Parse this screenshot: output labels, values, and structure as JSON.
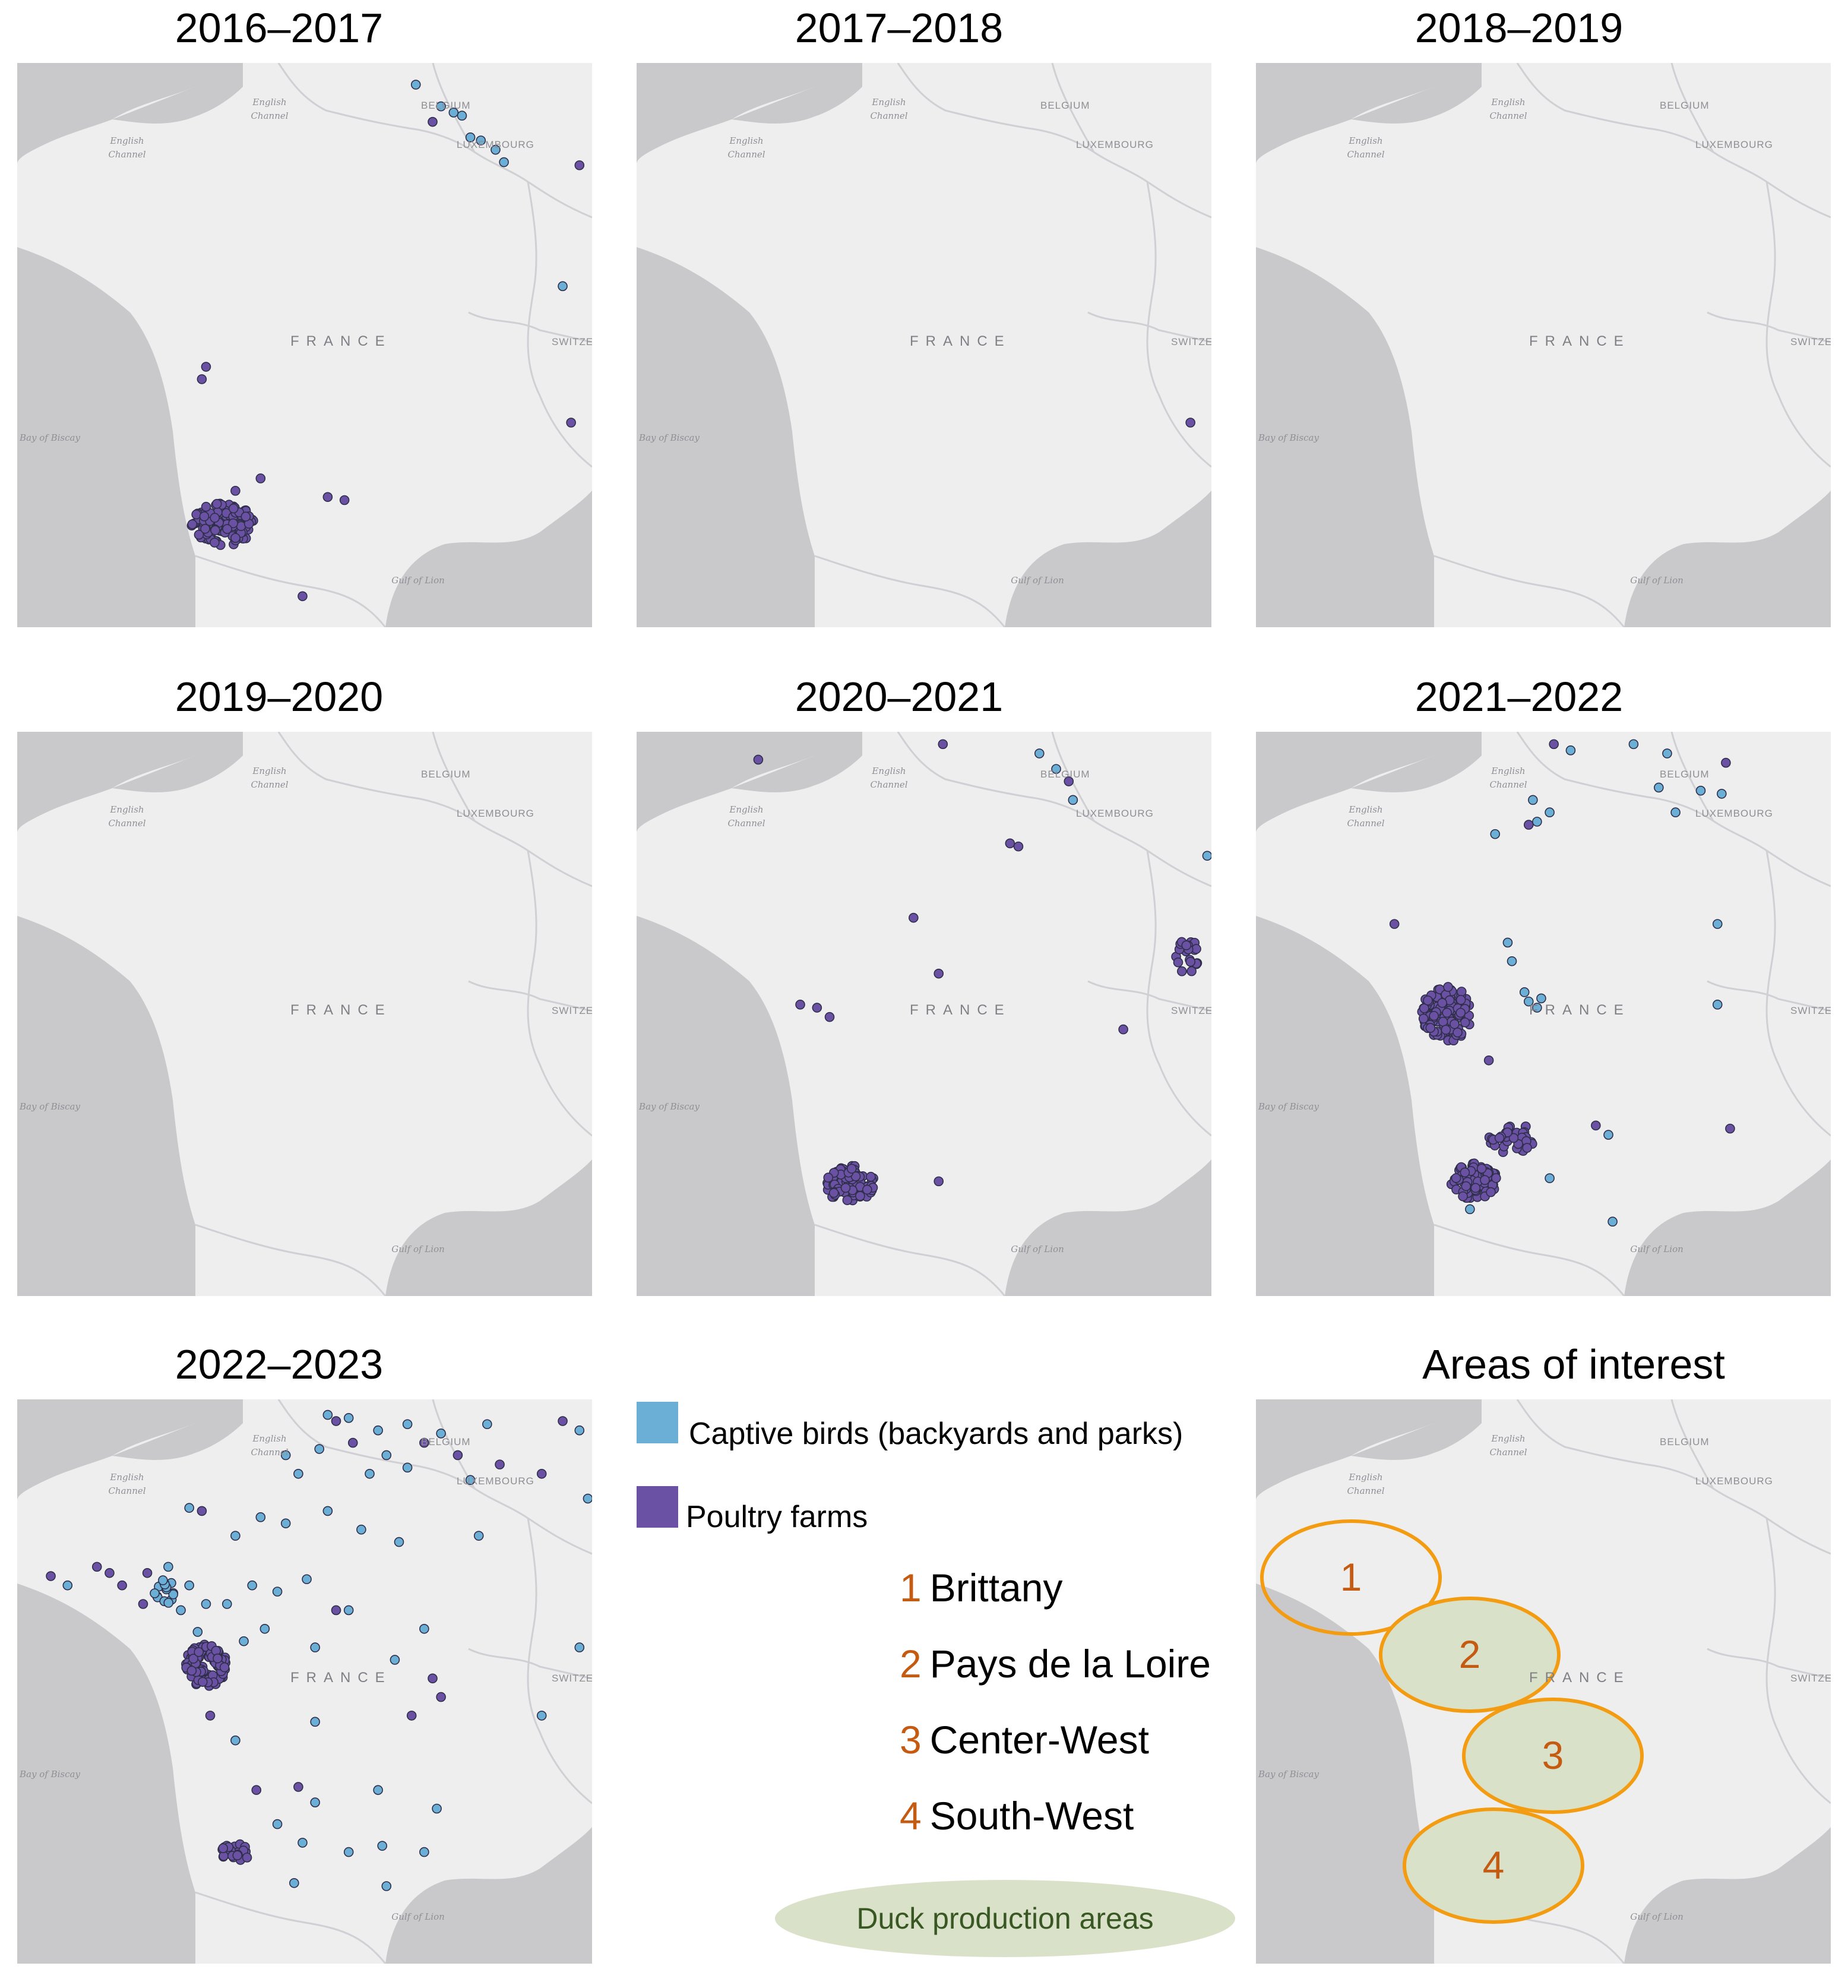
{
  "panels": [
    {
      "title": "2016–2017",
      "outbreaks": [
        {
          "type": "captive",
          "lon": 4.0,
          "lat": 50.95
        },
        {
          "type": "captive",
          "lon": 4.6,
          "lat": 50.6
        },
        {
          "type": "captive",
          "lon": 4.9,
          "lat": 50.5
        },
        {
          "type": "captive",
          "lon": 5.1,
          "lat": 50.45
        },
        {
          "type": "poultry",
          "lon": 4.4,
          "lat": 50.35
        },
        {
          "type": "captive",
          "lon": 5.3,
          "lat": 50.1
        },
        {
          "type": "captive",
          "lon": 5.55,
          "lat": 50.05
        },
        {
          "type": "captive",
          "lon": 5.9,
          "lat": 49.9
        },
        {
          "type": "captive",
          "lon": 6.1,
          "lat": 49.7
        },
        {
          "type": "poultry",
          "lon": 7.9,
          "lat": 49.65
        },
        {
          "type": "captive",
          "lon": 7.5,
          "lat": 47.7
        },
        {
          "type": "poultry",
          "lon": -1.0,
          "lat": 46.4
        },
        {
          "type": "poultry",
          "lon": -1.1,
          "lat": 46.2
        },
        {
          "type": "poultry",
          "lon": 7.7,
          "lat": 45.5
        },
        {
          "type": "poultry",
          "lon": 0.3,
          "lat": 44.6
        },
        {
          "type": "poultry",
          "lon": -0.3,
          "lat": 44.4
        },
        {
          "type": "poultry",
          "lon": 1.9,
          "lat": 44.3
        },
        {
          "type": "poultry",
          "lon": 2.3,
          "lat": 44.25
        },
        {
          "type": "poultry",
          "lon": 1.3,
          "lat": 42.7
        }
      ],
      "cluster": [
        {
          "lon": -0.6,
          "lat": 43.85,
          "rlon": 0.75,
          "rlat": 0.35,
          "n": 110,
          "type": "poultry"
        }
      ]
    },
    {
      "title": "2017–2018",
      "outbreaks": [
        {
          "type": "poultry",
          "lon": 7.7,
          "lat": 45.5
        }
      ],
      "cluster": []
    },
    {
      "title": "2018–2019",
      "outbreaks": [],
      "cluster": []
    },
    {
      "title": "2019–2020",
      "outbreaks": [],
      "cluster": []
    },
    {
      "title": "2020–2021",
      "outbreaks": [
        {
          "type": "poultry",
          "lon": 1.8,
          "lat": 51.1
        },
        {
          "type": "poultry",
          "lon": -2.6,
          "lat": 50.85
        },
        {
          "type": "captive",
          "lon": 4.1,
          "lat": 50.95
        },
        {
          "type": "captive",
          "lon": 4.5,
          "lat": 50.7
        },
        {
          "type": "poultry",
          "lon": 4.8,
          "lat": 50.5
        },
        {
          "type": "captive",
          "lon": 4.9,
          "lat": 50.2
        },
        {
          "type": "poultry",
          "lon": 3.4,
          "lat": 49.5
        },
        {
          "type": "poultry",
          "lon": 3.6,
          "lat": 49.45
        },
        {
          "type": "captive",
          "lon": 8.1,
          "lat": 49.3
        },
        {
          "type": "poultry",
          "lon": 1.1,
          "lat": 48.3
        },
        {
          "type": "poultry",
          "lon": 1.7,
          "lat": 47.4
        },
        {
          "type": "poultry",
          "lon": -1.2,
          "lat": 46.85
        },
        {
          "type": "poultry",
          "lon": -0.9,
          "lat": 46.7
        },
        {
          "type": "poultry",
          "lon": -1.6,
          "lat": 46.9
        },
        {
          "type": "poultry",
          "lon": 6.1,
          "lat": 46.5
        },
        {
          "type": "poultry",
          "lon": 1.7,
          "lat": 44.05
        }
      ],
      "cluster": [
        {
          "lon": -0.4,
          "lat": 44.0,
          "rlon": 0.6,
          "rlat": 0.3,
          "n": 90,
          "type": "poultry"
        },
        {
          "lon": 7.6,
          "lat": 47.7,
          "rlon": 0.3,
          "rlat": 0.3,
          "n": 22,
          "type": "poultry"
        }
      ]
    },
    {
      "title": "2021–2022",
      "outbreaks": [
        {
          "type": "poultry",
          "lon": 1.6,
          "lat": 51.1
        },
        {
          "type": "captive",
          "lon": 2.0,
          "lat": 51.0
        },
        {
          "type": "captive",
          "lon": 3.5,
          "lat": 51.1
        },
        {
          "type": "captive",
          "lon": 4.3,
          "lat": 50.95
        },
        {
          "type": "poultry",
          "lon": 5.7,
          "lat": 50.8
        },
        {
          "type": "captive",
          "lon": 4.1,
          "lat": 50.4
        },
        {
          "type": "captive",
          "lon": 5.1,
          "lat": 50.35
        },
        {
          "type": "captive",
          "lon": 5.6,
          "lat": 50.3
        },
        {
          "type": "captive",
          "lon": 4.5,
          "lat": 50.0
        },
        {
          "type": "captive",
          "lon": 1.1,
          "lat": 50.2
        },
        {
          "type": "captive",
          "lon": 1.5,
          "lat": 50.0
        },
        {
          "type": "captive",
          "lon": 0.2,
          "lat": 49.65
        },
        {
          "type": "poultry",
          "lon": 1.0,
          "lat": 49.8
        },
        {
          "type": "captive",
          "lon": 1.2,
          "lat": 49.85
        },
        {
          "type": "poultry",
          "lon": -2.2,
          "lat": 48.2
        },
        {
          "type": "captive",
          "lon": 0.5,
          "lat": 47.9
        },
        {
          "type": "captive",
          "lon": 0.6,
          "lat": 47.6
        },
        {
          "type": "captive",
          "lon": 5.5,
          "lat": 48.2
        },
        {
          "type": "captive",
          "lon": 0.9,
          "lat": 47.1
        },
        {
          "type": "captive",
          "lon": 1.0,
          "lat": 46.95
        },
        {
          "type": "captive",
          "lon": 1.3,
          "lat": 47.0
        },
        {
          "type": "captive",
          "lon": 1.2,
          "lat": 46.85
        },
        {
          "type": "captive",
          "lon": 5.5,
          "lat": 46.9
        },
        {
          "type": "poultry",
          "lon": 0.05,
          "lat": 46.0
        },
        {
          "type": "poultry",
          "lon": 5.8,
          "lat": 44.9
        },
        {
          "type": "poultry",
          "lon": 2.6,
          "lat": 44.95
        },
        {
          "type": "captive",
          "lon": 2.9,
          "lat": 44.8
        },
        {
          "type": "captive",
          "lon": 1.5,
          "lat": 44.1
        },
        {
          "type": "captive",
          "lon": -0.4,
          "lat": 43.6
        },
        {
          "type": "captive",
          "lon": 3.0,
          "lat": 43.4
        }
      ],
      "cluster": [
        {
          "lon": -0.95,
          "lat": 46.75,
          "rlon": 0.6,
          "rlat": 0.45,
          "n": 130,
          "type": "poultry"
        },
        {
          "lon": 0.6,
          "lat": 44.75,
          "rlon": 0.55,
          "rlat": 0.25,
          "n": 35,
          "type": "poultry"
        },
        {
          "lon": -0.3,
          "lat": 44.05,
          "rlon": 0.55,
          "rlat": 0.3,
          "n": 80,
          "type": "poultry"
        }
      ]
    },
    {
      "title": "2022–2023",
      "outbreaks": [
        {
          "type": "captive",
          "lon": 1.9,
          "lat": 51.05
        },
        {
          "type": "poultry",
          "lon": 2.1,
          "lat": 50.95
        },
        {
          "type": "captive",
          "lon": 2.4,
          "lat": 51.0
        },
        {
          "type": "captive",
          "lon": 3.1,
          "lat": 50.8
        },
        {
          "type": "captive",
          "lon": 3.8,
          "lat": 50.9
        },
        {
          "type": "poultry",
          "lon": 4.2,
          "lat": 50.6
        },
        {
          "type": "captive",
          "lon": 4.6,
          "lat": 50.75
        },
        {
          "type": "poultry",
          "lon": 5.0,
          "lat": 50.4
        },
        {
          "type": "captive",
          "lon": 5.7,
          "lat": 50.9
        },
        {
          "type": "poultry",
          "lon": 7.5,
          "lat": 50.95
        },
        {
          "type": "captive",
          "lon": 7.9,
          "lat": 50.8
        },
        {
          "type": "poultry",
          "lon": 6.0,
          "lat": 50.25
        },
        {
          "type": "captive",
          "lon": 0.9,
          "lat": 50.4
        },
        {
          "type": "captive",
          "lon": 1.7,
          "lat": 50.5
        },
        {
          "type": "poultry",
          "lon": 2.5,
          "lat": 50.6
        },
        {
          "type": "captive",
          "lon": 3.3,
          "lat": 50.4
        },
        {
          "type": "captive",
          "lon": 1.2,
          "lat": 50.1
        },
        {
          "type": "captive",
          "lon": 2.9,
          "lat": 50.1
        },
        {
          "type": "captive",
          "lon": 3.8,
          "lat": 50.2
        },
        {
          "type": "captive",
          "lon": 5.3,
          "lat": 50.0
        },
        {
          "type": "poultry",
          "lon": 7.0,
          "lat": 50.1
        },
        {
          "type": "captive",
          "lon": 8.1,
          "lat": 49.7
        },
        {
          "type": "captive",
          "lon": 0.3,
          "lat": 49.4
        },
        {
          "type": "captive",
          "lon": 0.9,
          "lat": 49.3
        },
        {
          "type": "captive",
          "lon": 1.9,
          "lat": 49.5
        },
        {
          "type": "captive",
          "lon": 2.7,
          "lat": 49.2
        },
        {
          "type": "captive",
          "lon": 3.6,
          "lat": 49.0
        },
        {
          "type": "captive",
          "lon": 5.5,
          "lat": 49.1
        },
        {
          "type": "captive",
          "lon": -1.4,
          "lat": 49.55
        },
        {
          "type": "poultry",
          "lon": -1.1,
          "lat": 49.5
        },
        {
          "type": "captive",
          "lon": -0.3,
          "lat": 49.1
        },
        {
          "type": "poultry",
          "lon": -4.7,
          "lat": 48.45
        },
        {
          "type": "captive",
          "lon": -4.3,
          "lat": 48.3
        },
        {
          "type": "poultry",
          "lon": -3.6,
          "lat": 48.6
        },
        {
          "type": "poultry",
          "lon": -3.3,
          "lat": 48.5
        },
        {
          "type": "poultry",
          "lon": -3.0,
          "lat": 48.3
        },
        {
          "type": "poultry",
          "lon": -2.4,
          "lat": 48.5
        },
        {
          "type": "poultry",
          "lon": -2.5,
          "lat": 48.0
        },
        {
          "type": "captive",
          "lon": -1.9,
          "lat": 48.6
        },
        {
          "type": "captive",
          "lon": -1.4,
          "lat": 48.3
        },
        {
          "type": "captive",
          "lon": -1.0,
          "lat": 48.0
        },
        {
          "type": "captive",
          "lon": -0.5,
          "lat": 48.0
        },
        {
          "type": "captive",
          "lon": 0.1,
          "lat": 48.3
        },
        {
          "type": "captive",
          "lon": 0.7,
          "lat": 48.2
        },
        {
          "type": "captive",
          "lon": 1.4,
          "lat": 48.4
        },
        {
          "type": "poultry",
          "lon": 2.1,
          "lat": 47.9
        },
        {
          "type": "captive",
          "lon": 2.4,
          "lat": 47.9
        },
        {
          "type": "captive",
          "lon": -0.1,
          "lat": 47.4
        },
        {
          "type": "captive",
          "lon": 0.4,
          "lat": 47.6
        },
        {
          "type": "captive",
          "lon": 1.6,
          "lat": 47.3
        },
        {
          "type": "captive",
          "lon": 3.5,
          "lat": 47.1
        },
        {
          "type": "captive",
          "lon": 4.2,
          "lat": 47.6
        },
        {
          "type": "poultry",
          "lon": 4.4,
          "lat": 46.8
        },
        {
          "type": "poultry",
          "lon": 4.6,
          "lat": 46.5
        },
        {
          "type": "captive",
          "lon": 7.9,
          "lat": 47.3
        },
        {
          "type": "captive",
          "lon": 7.0,
          "lat": 46.2
        },
        {
          "type": "poultry",
          "lon": 3.9,
          "lat": 46.2
        },
        {
          "type": "captive",
          "lon": 1.6,
          "lat": 46.1
        },
        {
          "type": "captive",
          "lon": -0.3,
          "lat": 45.8
        },
        {
          "type": "poultry",
          "lon": -0.9,
          "lat": 46.2
        },
        {
          "type": "captive",
          "lon": -1.6,
          "lat": 47.9
        },
        {
          "type": "captive",
          "lon": -1.2,
          "lat": 47.55
        },
        {
          "type": "poultry",
          "lon": 0.2,
          "lat": 45.0
        },
        {
          "type": "poultry",
          "lon": 1.2,
          "lat": 45.05
        },
        {
          "type": "captive",
          "lon": 1.6,
          "lat": 44.8
        },
        {
          "type": "captive",
          "lon": 3.1,
          "lat": 45.0
        },
        {
          "type": "captive",
          "lon": 4.5,
          "lat": 44.7
        },
        {
          "type": "captive",
          "lon": 0.7,
          "lat": 44.45
        },
        {
          "type": "captive",
          "lon": 1.3,
          "lat": 44.15
        },
        {
          "type": "captive",
          "lon": 2.4,
          "lat": 44.0
        },
        {
          "type": "captive",
          "lon": 3.2,
          "lat": 44.1
        },
        {
          "type": "captive",
          "lon": 4.2,
          "lat": 44.0
        },
        {
          "type": "captive",
          "lon": 1.1,
          "lat": 43.5
        },
        {
          "type": "captive",
          "lon": 3.3,
          "lat": 43.45
        }
      ],
      "cluster": [
        {
          "lon": -1.0,
          "lat": 47.0,
          "rlon": 0.5,
          "rlat": 0.35,
          "n": 90,
          "type": "poultry"
        },
        {
          "lon": -0.3,
          "lat": 44.0,
          "rlon": 0.35,
          "rlat": 0.15,
          "n": 28,
          "type": "poultry"
        },
        {
          "lon": -2.0,
          "lat": 48.2,
          "rlon": 0.25,
          "rlat": 0.2,
          "n": 15,
          "type": "captive"
        }
      ]
    }
  ],
  "map_labels": {
    "english_channel": "English Channel",
    "belgium": "BELGIUM",
    "luxembourg": "LUXEMBOURG",
    "france": "FRANCE",
    "switzerland": "SWITZE",
    "bay_of_biscay": "Bay of Biscay",
    "gulf_of_lion": "Gulf of Lion"
  },
  "legend": {
    "captive_label": "Captive birds (backyards and parks)",
    "poultry_label": "Poultry farms",
    "captive_color": "#6baed6",
    "poultry_color": "#6a51a3",
    "areas": [
      {
        "num": "1",
        "name": "Brittany"
      },
      {
        "num": "2",
        "name": "Pays de la Loire"
      },
      {
        "num": "3",
        "name": "Center-West"
      },
      {
        "num": "4",
        "name": "South-West"
      }
    ],
    "duck_label": "Duck production areas"
  },
  "areas_of_interest": {
    "title": "Areas of interest",
    "ellipses": [
      {
        "num": "1",
        "duck": false
      },
      {
        "num": "2",
        "duck": true
      },
      {
        "num": "3",
        "duck": true
      },
      {
        "num": "4",
        "duck": true
      }
    ]
  },
  "colors": {
    "land": "#eeeeef",
    "sea": "#c9c9cc",
    "border": "#cfcfd4",
    "accent": "#c55a11",
    "ellipse": "#f39c12"
  }
}
